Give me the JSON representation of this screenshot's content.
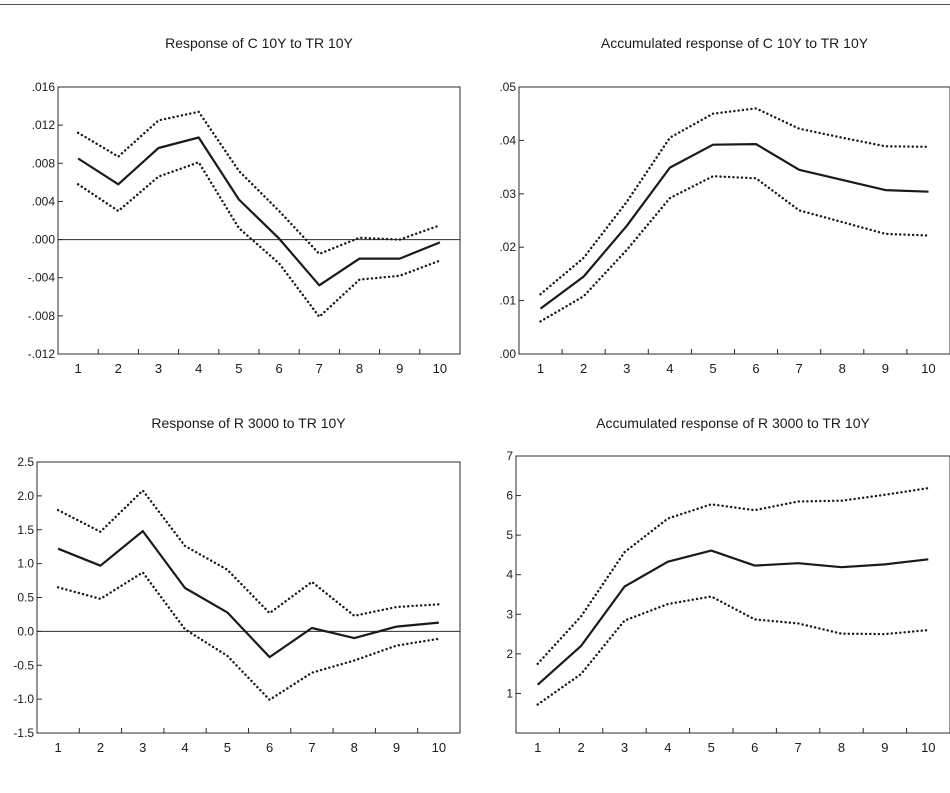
{
  "chart_data": [
    {
      "type": "line",
      "title": "Response of C 10Y to TR 10Y",
      "xlabel": "",
      "ylabel": "",
      "x": [
        1,
        2,
        3,
        4,
        5,
        6,
        7,
        8,
        9,
        10
      ],
      "ylim": [
        -0.012,
        0.016
      ],
      "yticks": [
        -0.012,
        -0.008,
        -0.004,
        0.0,
        0.004,
        0.008,
        0.012,
        0.016
      ],
      "ytick_labels": [
        "-.012",
        "-.008",
        "-.004",
        ".000",
        ".004",
        ".008",
        ".012",
        ".016"
      ],
      "zero_line": true,
      "series": [
        {
          "style": "solid",
          "values": [
            0.0085,
            0.0058,
            0.0096,
            0.0107,
            0.0042,
            0.0001,
            -0.0048,
            -0.002,
            -0.002,
            -0.0003
          ]
        },
        {
          "style": "dotted",
          "values": [
            0.0112,
            0.0087,
            0.0125,
            0.0134,
            0.0072,
            0.003,
            -0.0015,
            0.0002,
            0.0,
            0.0015
          ]
        },
        {
          "style": "dotted",
          "values": [
            0.0058,
            0.003,
            0.0066,
            0.0081,
            0.0012,
            -0.0025,
            -0.0081,
            -0.0042,
            -0.0038,
            -0.0022
          ]
        }
      ]
    },
    {
      "type": "line",
      "title": "Accumulated response of C 10Y to TR 10Y",
      "xlabel": "",
      "ylabel": "",
      "x": [
        1,
        2,
        3,
        4,
        5,
        6,
        7,
        8,
        9,
        10
      ],
      "ylim": [
        0.0,
        0.05
      ],
      "yticks": [
        0.0,
        0.01,
        0.02,
        0.03,
        0.04,
        0.05
      ],
      "ytick_labels": [
        ".00",
        ".01",
        ".02",
        ".03",
        ".04",
        ".05"
      ],
      "zero_line": false,
      "series": [
        {
          "style": "solid",
          "values": [
            0.0085,
            0.0145,
            0.024,
            0.0349,
            0.0392,
            0.0393,
            0.0345,
            0.0326,
            0.0307,
            0.0304
          ]
        },
        {
          "style": "dotted",
          "values": [
            0.0112,
            0.018,
            0.0285,
            0.0405,
            0.045,
            0.046,
            0.0422,
            0.0405,
            0.0389,
            0.0388
          ]
        },
        {
          "style": "dotted",
          "values": [
            0.0061,
            0.0108,
            0.0195,
            0.0292,
            0.0333,
            0.0329,
            0.0269,
            0.0247,
            0.0225,
            0.0222
          ]
        }
      ]
    },
    {
      "type": "line",
      "title": "Response of R 3000 to TR 10Y",
      "xlabel": "",
      "ylabel": "",
      "x": [
        1,
        2,
        3,
        4,
        5,
        6,
        7,
        8,
        9,
        10
      ],
      "ylim": [
        -1.5,
        2.5
      ],
      "yticks": [
        -1.5,
        -1.0,
        -0.5,
        0.0,
        0.5,
        1.0,
        1.5,
        2.0,
        2.5
      ],
      "ytick_labels": [
        "-1.5",
        "-1.0",
        "-0.5",
        "0.0",
        "0.5",
        "1.0",
        "1.5",
        "2.0",
        "2.5"
      ],
      "zero_line": true,
      "series": [
        {
          "style": "solid",
          "values": [
            1.22,
            0.97,
            1.48,
            0.64,
            0.28,
            -0.38,
            0.05,
            -0.1,
            0.07,
            0.13
          ]
        },
        {
          "style": "dotted",
          "values": [
            1.79,
            1.47,
            2.08,
            1.26,
            0.91,
            0.27,
            0.73,
            0.23,
            0.36,
            0.4
          ]
        },
        {
          "style": "dotted",
          "values": [
            0.65,
            0.48,
            0.87,
            0.03,
            -0.36,
            -1.01,
            -0.61,
            -0.43,
            -0.21,
            -0.11
          ]
        }
      ]
    },
    {
      "type": "line",
      "title": "Accumulated response of R 3000 to TR 10Y",
      "xlabel": "",
      "ylabel": "",
      "x": [
        1,
        2,
        3,
        4,
        5,
        6,
        7,
        8,
        9,
        10
      ],
      "ylim": [
        0,
        7
      ],
      "yticks": [
        1,
        2,
        3,
        4,
        5,
        6,
        7
      ],
      "ytick_labels": [
        "1",
        "2",
        "3",
        "4",
        "5",
        "6",
        "7"
      ],
      "zero_line": false,
      "series": [
        {
          "style": "solid",
          "values": [
            1.22,
            2.2,
            3.7,
            4.33,
            4.61,
            4.23,
            4.29,
            4.19,
            4.26,
            4.39
          ]
        },
        {
          "style": "dotted",
          "values": [
            1.75,
            2.95,
            4.57,
            5.42,
            5.78,
            5.63,
            5.85,
            5.87,
            6.02,
            6.19
          ]
        },
        {
          "style": "dotted",
          "values": [
            0.72,
            1.49,
            2.84,
            3.26,
            3.45,
            2.87,
            2.77,
            2.51,
            2.5,
            2.6
          ]
        }
      ]
    }
  ]
}
